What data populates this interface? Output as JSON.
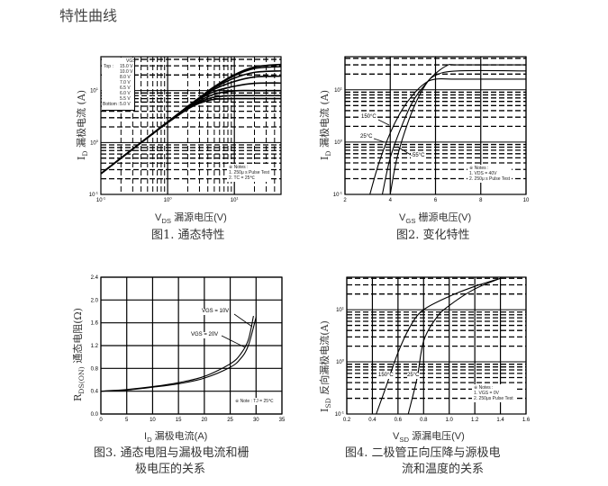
{
  "page": {
    "title": "特性曲线"
  },
  "figures": [
    {
      "xlabel_sym": "V",
      "xlabel_sub": "DS",
      "xlabel_text": " 漏源电压(V)",
      "ylabel_sym": "I",
      "ylabel_sub": "D",
      "ylabel_text": " 漏极电流 (A)",
      "caption": "图1. 通态特性"
    },
    {
      "xlabel_sym": "V",
      "xlabel_sub": "GS",
      "xlabel_text": " 栅源电压(V)",
      "ylabel_sym": "I",
      "ylabel_sub": "D",
      "ylabel_text": " 漏极电流 (A)",
      "caption": "图2. 变化特性"
    },
    {
      "xlabel_sym": "I",
      "xlabel_sub": "D",
      "xlabel_text": " 漏极电流(A)",
      "ylabel_sym": "R",
      "ylabel_sub": "DS(ON)",
      "ylabel_text": " 通态电阻(Ω)",
      "caption_line1": "图3. 通态电阻与漏极电流和栅",
      "caption_line2": "极电压的关系"
    },
    {
      "xlabel_sym": "V",
      "xlabel_sub": "SD",
      "xlabel_text": " 源漏电压(V)",
      "ylabel_sym": "I",
      "ylabel_sub": "SD",
      "ylabel_text": " 反向漏极电流(A)",
      "caption_line1": "图4. 二极管正向压降与源极电",
      "caption_line2": "流和温度的关系"
    }
  ],
  "annotations": {
    "fig1_legend_header": "VGS",
    "fig1_top": "Top :",
    "fig1_bottom": "Bottom :",
    "fig1_vgs": [
      "15.0 V",
      "10.0 V",
      "8.0 V",
      "7.0 V",
      "6.5 V",
      "6.0 V",
      "5.5 V",
      "5.0 V"
    ],
    "fig1_notes": [
      "※ Notes :",
      "1. 250μ s Pulse Test",
      "2. TC = 25℃"
    ],
    "fig2_labels": [
      "150°C",
      "25°C",
      "-55°C"
    ],
    "fig2_notes": [
      "※ Notes :",
      "1. VDS = 40V",
      "2. 250μ s Pulse Test"
    ],
    "fig3_labels": [
      "VGS = 10V",
      "VGS = 20V"
    ],
    "fig3_notes": [
      "※ Note : TJ = 25℃"
    ],
    "fig4_labels": [
      "150°C",
      "25°C"
    ],
    "fig4_notes": [
      "※ Notes :",
      "1. VGS = 0V",
      "2. 250μs Pulse Test"
    ]
  },
  "chart_data": [
    {
      "type": "line",
      "title": "图1. 通态特性",
      "xlabel": "VDS 漏源电压(V)",
      "ylabel": "ID 漏极电流 (A)",
      "xscale": "log",
      "yscale": "log",
      "xlim": [
        0.1,
        50
      ],
      "ylim": [
        0.1,
        45
      ],
      "grid": true,
      "xticks": [
        "10^-1",
        "10^0",
        "10^1"
      ],
      "yticks": [
        "10^-1",
        "10^0",
        "10^1"
      ],
      "legend": "top-left",
      "x": [
        0.1,
        0.2,
        0.5,
        1,
        2,
        3,
        5,
        10,
        20,
        50
      ],
      "series": [
        {
          "name": "15.0 V",
          "values": [
            0.25,
            0.5,
            1.25,
            2.49,
            4.96,
            7.35,
            11.9,
            20.2,
            28.5,
            32
          ]
        },
        {
          "name": "10.0 V",
          "values": [
            0.25,
            0.5,
            1.25,
            2.49,
            4.95,
            7.3,
            11.7,
            19.3,
            26.7,
            29
          ]
        },
        {
          "name": "8.0 V",
          "values": [
            0.25,
            0.5,
            1.25,
            2.48,
            4.9,
            7.2,
            11.3,
            17.4,
            22.5,
            24
          ]
        },
        {
          "name": "7.0 V",
          "values": [
            0.25,
            0.5,
            1.25,
            2.47,
            4.85,
            7.0,
            10.6,
            15.0,
            18.3,
            19
          ]
        },
        {
          "name": "6.5 V",
          "values": [
            0.25,
            0.5,
            1.25,
            2.46,
            4.75,
            6.8,
            9.6,
            12.1,
            13.8,
            14
          ]
        },
        {
          "name": "6.0 V",
          "values": [
            0.25,
            0.5,
            1.24,
            2.44,
            4.6,
            6.3,
            8.5,
            9.9,
            10,
            10
          ]
        },
        {
          "name": "5.5 V",
          "values": [
            0.25,
            0.5,
            1.24,
            2.42,
            4.5,
            6.0,
            7.5,
            8,
            8,
            8
          ]
        },
        {
          "name": "5.0 V",
          "values": [
            0.25,
            0.5,
            1.23,
            2.4,
            4.4,
            5.7,
            6.8,
            7,
            7,
            7
          ]
        }
      ]
    },
    {
      "type": "line",
      "title": "图2. 变化特性",
      "xlabel": "VGS 栅源电压(V)",
      "ylabel": "ID 漏极电流 (A)",
      "xscale": "linear",
      "yscale": "log",
      "xlim": [
        2,
        10
      ],
      "ylim": [
        0.1,
        43
      ],
      "grid": true,
      "xticks": [
        "2",
        "4",
        "6",
        "8",
        "10"
      ],
      "yticks": [
        "10^-1",
        "10^0",
        "10^1"
      ],
      "series": [
        {
          "name": "150°C",
          "points": [
            [
              3.1,
              0.1
            ],
            [
              3.5,
              0.4
            ],
            [
              4,
              1.5
            ],
            [
              4.5,
              4
            ],
            [
              5,
              8
            ],
            [
              5.5,
              13
            ],
            [
              6,
              16
            ],
            [
              7,
              16
            ],
            [
              10,
              16
            ]
          ]
        },
        {
          "name": "25°C",
          "points": [
            [
              3.65,
              0.1
            ],
            [
              4,
              0.5
            ],
            [
              4.5,
              2
            ],
            [
              5,
              6
            ],
            [
              5.5,
              12
            ],
            [
              6,
              19
            ],
            [
              7,
              23
            ],
            [
              10,
              23
            ]
          ]
        },
        {
          "name": "-55°C",
          "points": [
            [
              4.0,
              0.1
            ],
            [
              4.3,
              0.5
            ],
            [
              4.8,
              2.5
            ],
            [
              5.3,
              8
            ],
            [
              5.8,
              17
            ],
            [
              6.5,
              29
            ],
            [
              7,
              30
            ],
            [
              10,
              30
            ]
          ]
        }
      ]
    },
    {
      "type": "line",
      "title": "图3. 通态电阻与漏极电流和栅极电压的关系",
      "xlabel": "ID 漏极电流(A)",
      "ylabel": "RDS(ON) 通态电阻(Ω)",
      "xscale": "linear",
      "yscale": "linear",
      "xlim": [
        0,
        35
      ],
      "ylim": [
        0,
        2.4
      ],
      "grid": true,
      "xticks": [
        "0",
        "5",
        "10",
        "15",
        "20",
        "25",
        "30",
        "35"
      ],
      "yticks": [
        "0.0",
        "0.4",
        "0.8",
        "1.2",
        "1.6",
        "2.0",
        "2.4"
      ],
      "series": [
        {
          "name": "VGS = 10V",
          "points": [
            [
              0,
              0.4
            ],
            [
              5,
              0.43
            ],
            [
              10,
              0.48
            ],
            [
              15,
              0.55
            ],
            [
              20,
              0.66
            ],
            [
              25,
              0.88
            ],
            [
              27,
              1.05
            ],
            [
              28.5,
              1.3
            ],
            [
              29.5,
              1.72
            ]
          ]
        },
        {
          "name": "VGS = 20V",
          "points": [
            [
              0,
              0.4
            ],
            [
              5,
              0.42
            ],
            [
              10,
              0.47
            ],
            [
              15,
              0.53
            ],
            [
              20,
              0.63
            ],
            [
              25,
              0.82
            ],
            [
              27,
              0.97
            ],
            [
              28.5,
              1.2
            ],
            [
              30,
              1.7
            ]
          ]
        }
      ]
    },
    {
      "type": "line",
      "title": "图4. 二极管正向压降与源极电流和温度的关系",
      "xlabel": "VSD 源漏电压(V)",
      "ylabel": "ISD 反向漏极电流(A)",
      "xscale": "linear",
      "yscale": "log",
      "xlim": [
        0.2,
        1.6
      ],
      "ylim": [
        0.1,
        42
      ],
      "grid": true,
      "xticks": [
        "0.2",
        "0.4",
        "0.6",
        "0.8",
        "1.0",
        "1.2",
        "1.4",
        "1.6"
      ],
      "yticks": [
        "10^-1",
        "10^0",
        "10^1"
      ],
      "series": [
        {
          "name": "150°C",
          "points": [
            [
              0.43,
              0.1
            ],
            [
              0.5,
              0.3
            ],
            [
              0.6,
              1.5
            ],
            [
              0.7,
              5
            ],
            [
              0.8,
              10
            ],
            [
              1.0,
              18
            ],
            [
              1.2,
              28
            ],
            [
              1.4,
              40
            ]
          ]
        },
        {
          "name": "25°C",
          "points": [
            [
              0.68,
              0.1
            ],
            [
              0.75,
              0.5
            ],
            [
              0.8,
              2.5
            ],
            [
              0.9,
              7
            ],
            [
              1.0,
              12
            ],
            [
              1.2,
              25
            ],
            [
              1.4,
              40
            ]
          ]
        }
      ]
    }
  ]
}
